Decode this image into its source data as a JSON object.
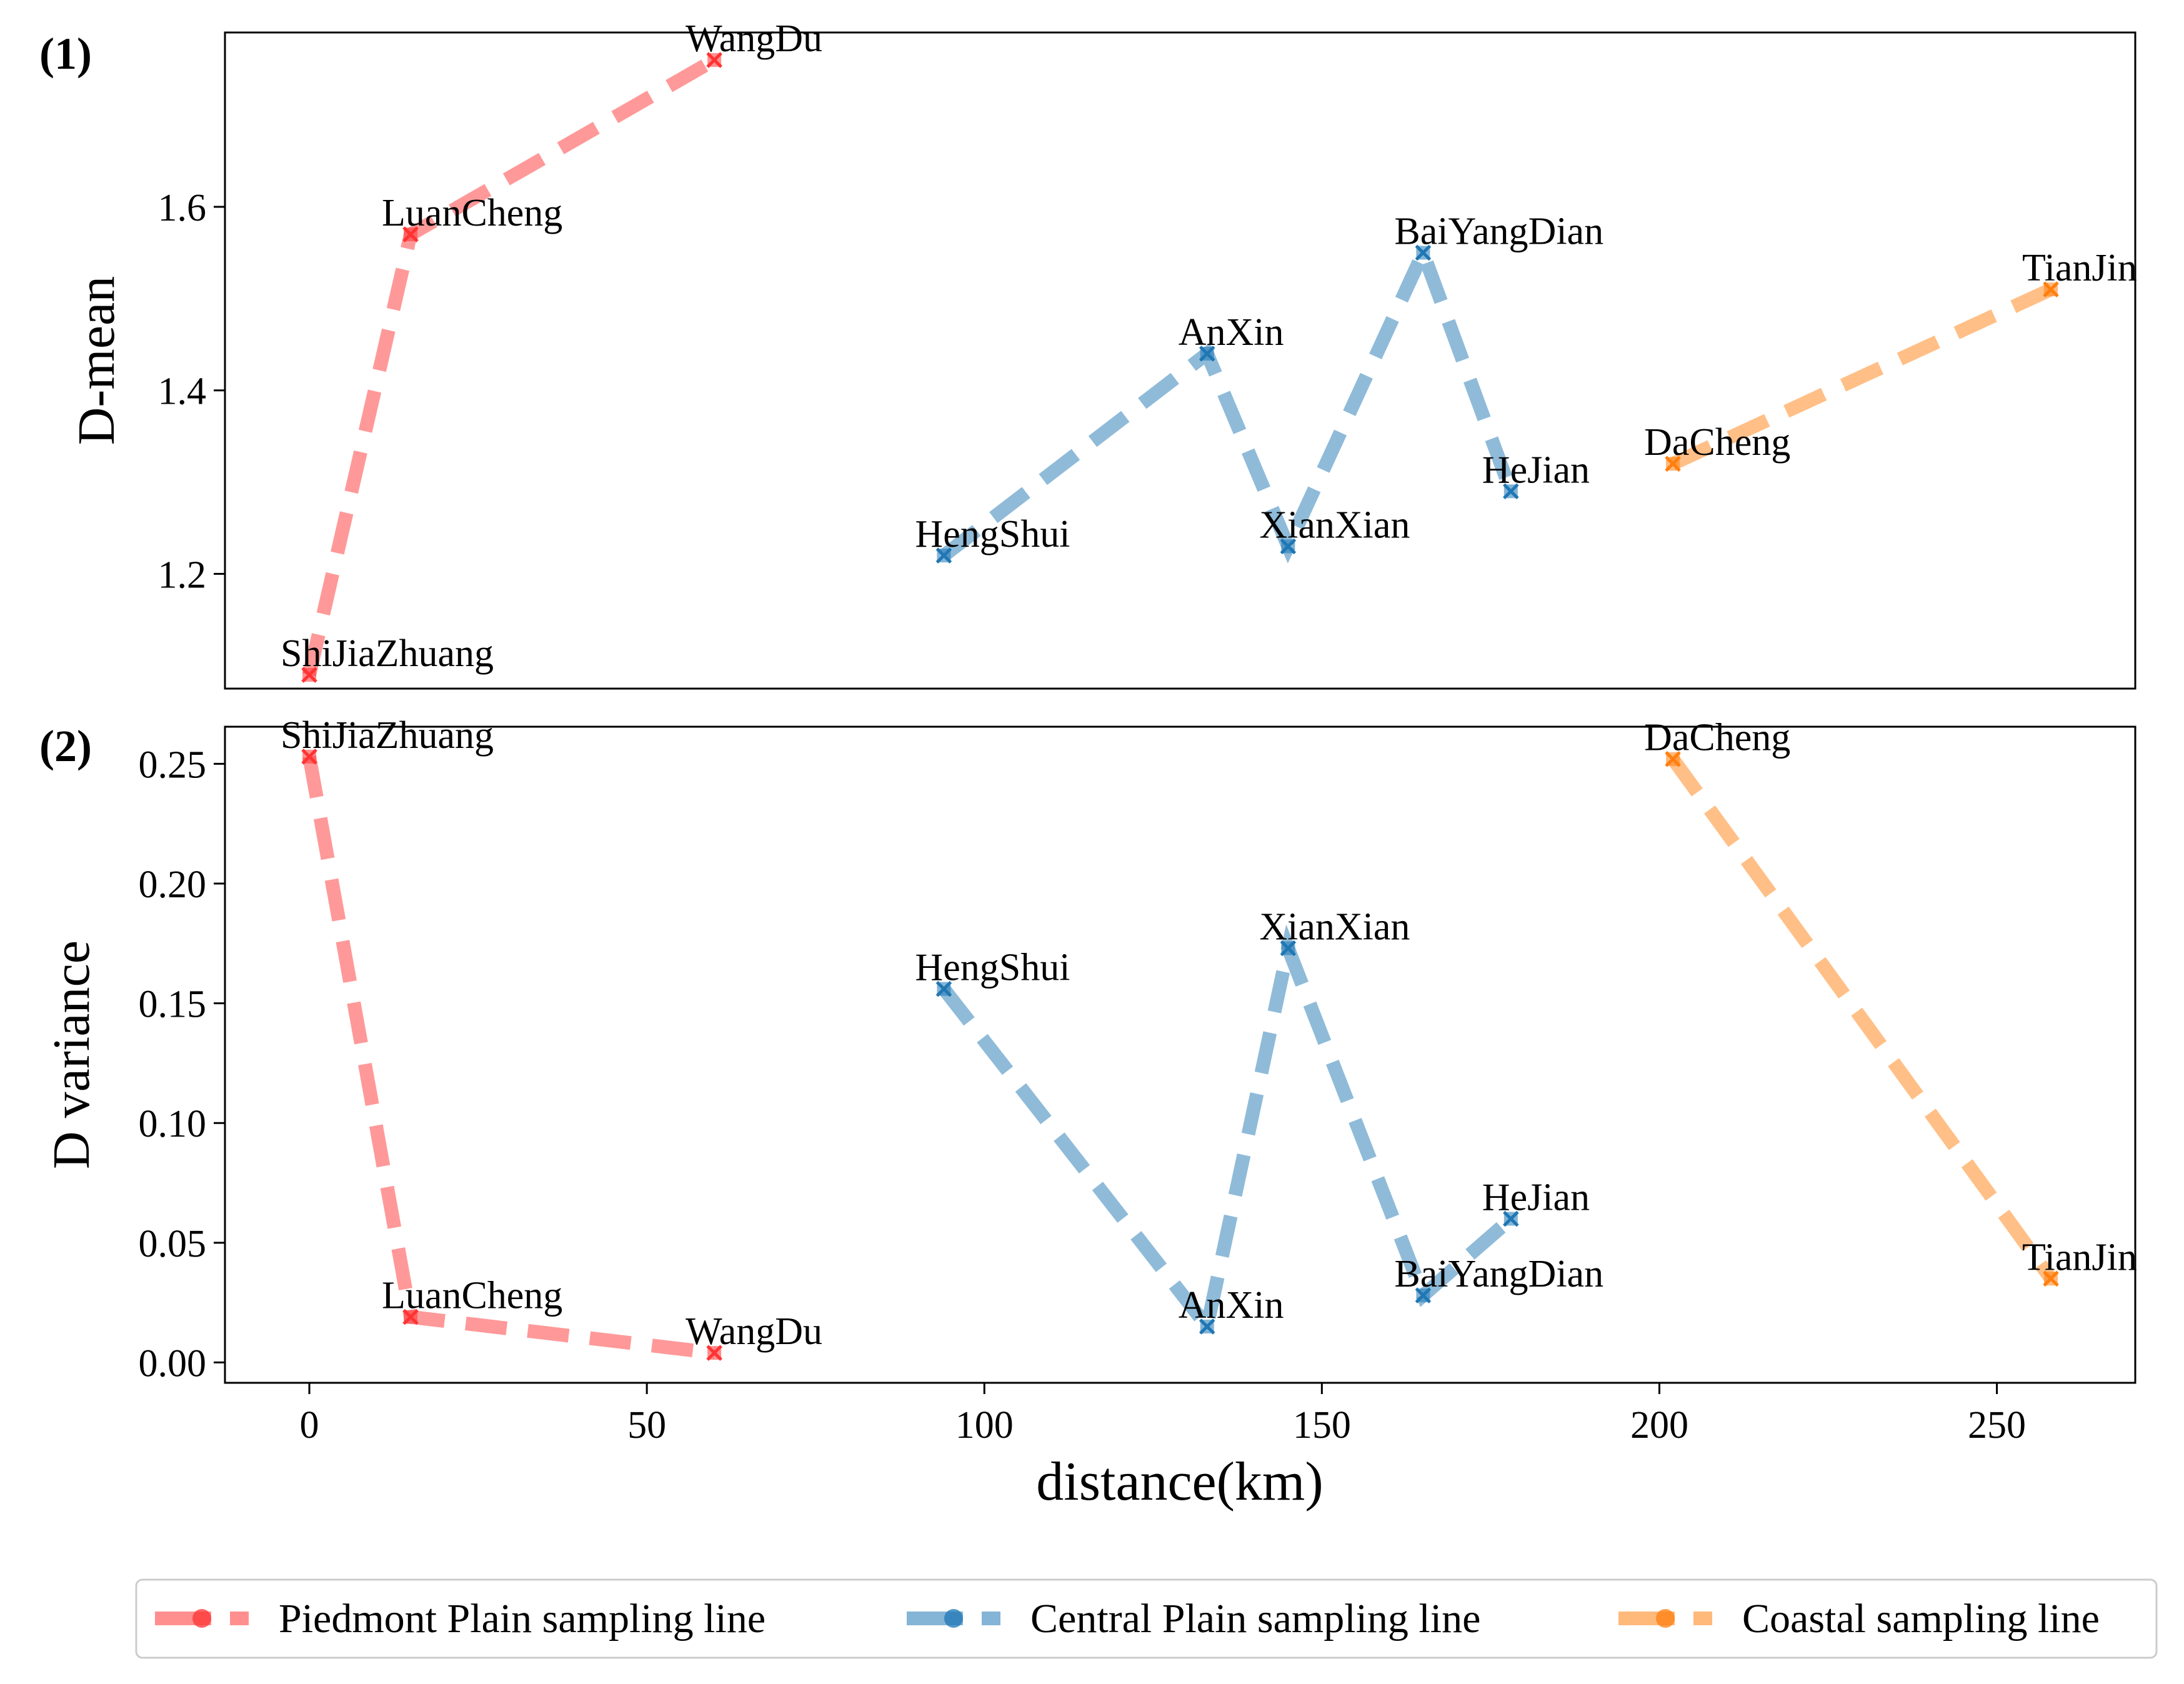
{
  "chart_data": [
    {
      "panel_label": "(1)",
      "type": "line",
      "ylabel": "D-mean",
      "xlabel": "",
      "xlim": [
        -12.5,
        270.5
      ],
      "ylim": [
        1.075,
        1.79
      ],
      "yticks": [
        1.2,
        1.4,
        1.6
      ],
      "ytick_labels": [
        "1.2",
        "1.4",
        "1.6"
      ],
      "grid": false,
      "series": [
        {
          "name": "Piedmont Plain sampling line",
          "color": "#ff3333",
          "points": [
            {
              "label": "ShiJiaZhuang",
              "x": 0,
              "y": 1.09
            },
            {
              "label": "LuanCheng",
              "x": 15,
              "y": 1.57
            },
            {
              "label": "WangDu",
              "x": 60,
              "y": 1.76
            }
          ]
        },
        {
          "name": "Central Plain sampling line",
          "color": "#1f77b4",
          "points": [
            {
              "label": "HengShui",
              "x": 94,
              "y": 1.22
            },
            {
              "label": "AnXin",
              "x": 133,
              "y": 1.44
            },
            {
              "label": "XianXian",
              "x": 145,
              "y": 1.23
            },
            {
              "label": "BaiYangDian",
              "x": 165,
              "y": 1.55
            },
            {
              "label": "HeJian",
              "x": 178,
              "y": 1.29
            }
          ]
        },
        {
          "name": "Coastal sampling line",
          "color": "#ff7f0e",
          "points": [
            {
              "label": "DaCheng",
              "x": 202,
              "y": 1.32
            },
            {
              "label": "TianJin",
              "x": 258,
              "y": 1.51
            }
          ]
        }
      ]
    },
    {
      "panel_label": "(2)",
      "type": "line",
      "ylabel": "D variance",
      "xlabel": "distance(km)",
      "xlim": [
        -12.5,
        270.5
      ],
      "ylim": [
        -0.0085,
        0.2655
      ],
      "yticks": [
        0.0,
        0.05,
        0.1,
        0.15,
        0.2,
        0.25
      ],
      "ytick_labels": [
        "0.00",
        "0.05",
        "0.10",
        "0.15",
        "0.20",
        "0.25"
      ],
      "xticks": [
        0,
        50,
        100,
        150,
        200,
        250
      ],
      "xtick_labels": [
        "0",
        "50",
        "100",
        "150",
        "200",
        "250"
      ],
      "grid": false,
      "series": [
        {
          "name": "Piedmont Plain sampling line",
          "color": "#ff3333",
          "points": [
            {
              "label": "ShiJiaZhuang",
              "x": 0,
              "y": 0.253
            },
            {
              "label": "LuanCheng",
              "x": 15,
              "y": 0.019
            },
            {
              "label": "WangDu",
              "x": 60,
              "y": 0.004
            }
          ]
        },
        {
          "name": "Central Plain sampling line",
          "color": "#1f77b4",
          "points": [
            {
              "label": "HengShui",
              "x": 94,
              "y": 0.156
            },
            {
              "label": "AnXin",
              "x": 133,
              "y": 0.015
            },
            {
              "label": "XianXian",
              "x": 145,
              "y": 0.173
            },
            {
              "label": "BaiYangDian",
              "x": 165,
              "y": 0.028
            },
            {
              "label": "HeJian",
              "x": 178,
              "y": 0.06
            }
          ]
        },
        {
          "name": "Coastal sampling line",
          "color": "#ff7f0e",
          "points": [
            {
              "label": "DaCheng",
              "x": 202,
              "y": 0.252
            },
            {
              "label": "TianJin",
              "x": 258,
              "y": 0.035
            }
          ]
        }
      ]
    }
  ],
  "legend": {
    "placement": "bottom",
    "entries": [
      {
        "label": "Piedmont Plain sampling line",
        "color": "#ff3333"
      },
      {
        "label": "Central Plain sampling line",
        "color": "#1f77b4"
      },
      {
        "label": "Coastal sampling line",
        "color": "#ff7f0e"
      }
    ]
  }
}
